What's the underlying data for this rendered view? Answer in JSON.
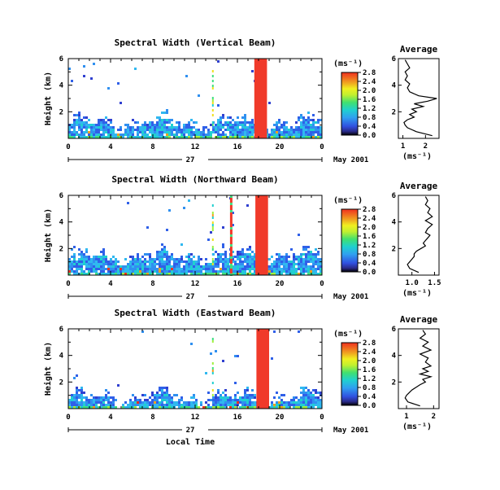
{
  "chart_data": [
    {
      "type": "heatmap",
      "title": "Spectral Width (Vertical Beam)",
      "ylabel": "Height (km)",
      "xlabel": "",
      "xticks": [
        "0",
        "4",
        "8",
        "12",
        "16",
        "20",
        "0"
      ],
      "yticks": [
        "2",
        "4",
        "6"
      ],
      "xlim": [
        0,
        24
      ],
      "ylim": [
        0,
        6
      ],
      "day_label": "27",
      "date_label": "May 2001",
      "colorbar": {
        "unit": "(ms⁻¹)",
        "ticks": [
          "0.0",
          "0.4",
          "0.8",
          "1.2",
          "1.6",
          "2.0",
          "2.4",
          "2.8"
        ],
        "range": [
          0.0,
          2.8
        ]
      },
      "profile": {
        "title": "Average",
        "unit": "(ms⁻¹)",
        "xticks": [
          "1",
          "2"
        ],
        "xlim": [
          0.8,
          2.6
        ],
        "yticks": [
          "2",
          "4",
          "6"
        ],
        "heights": [
          0.2,
          0.5,
          0.8,
          1.0,
          1.2,
          1.4,
          1.6,
          1.8,
          2.0,
          2.2,
          2.4,
          2.6,
          2.8,
          3.0,
          3.2,
          3.5,
          3.8,
          4.1,
          4.4,
          4.7,
          5.0,
          5.3,
          5.6,
          5.9
        ],
        "values": [
          2.3,
          1.6,
          1.2,
          1.1,
          1.05,
          1.2,
          1.5,
          1.3,
          1.6,
          1.4,
          1.9,
          1.5,
          2.1,
          2.5,
          1.7,
          1.3,
          1.2,
          1.3,
          1.1,
          1.2,
          1.1,
          1.3,
          1.2,
          1.1
        ]
      },
      "red_band": {
        "start_hour": 17.6,
        "end_hour": 18.8
      }
    },
    {
      "type": "heatmap",
      "title": "Spectral Width (Northward Beam)",
      "ylabel": "Height (km)",
      "xlabel": "",
      "xticks": [
        "0",
        "4",
        "8",
        "12",
        "16",
        "20",
        "0"
      ],
      "yticks": [
        "2",
        "4",
        "6"
      ],
      "xlim": [
        0,
        24
      ],
      "ylim": [
        0,
        6
      ],
      "day_label": "27",
      "date_label": "May 2001",
      "colorbar": {
        "unit": "(ms⁻¹)",
        "ticks": [
          "0.0",
          "0.4",
          "0.8",
          "1.2",
          "1.6",
          "2.0",
          "2.4",
          "2.8"
        ],
        "range": [
          0.0,
          2.8
        ]
      },
      "profile": {
        "title": "Average",
        "unit": "(ms⁻¹)",
        "xticks": [
          "1.0",
          "1.5"
        ],
        "xlim": [
          0.7,
          1.6
        ],
        "yticks": [
          "2",
          "4",
          "6"
        ],
        "heights": [
          0.2,
          0.5,
          0.8,
          1.0,
          1.2,
          1.4,
          1.6,
          1.8,
          2.0,
          2.2,
          2.4,
          2.6,
          2.8,
          3.0,
          3.2,
          3.5,
          3.8,
          4.1,
          4.4,
          4.7,
          5.0,
          5.3,
          5.6,
          5.9
        ],
        "values": [
          1.15,
          0.95,
          0.9,
          0.95,
          1.0,
          1.05,
          1.05,
          1.1,
          1.2,
          1.3,
          1.25,
          1.3,
          1.35,
          1.4,
          1.3,
          1.35,
          1.45,
          1.3,
          1.45,
          1.35,
          1.4,
          1.3,
          1.35,
          1.3
        ]
      },
      "red_band": {
        "start_hour": 17.7,
        "end_hour": 18.9
      }
    },
    {
      "type": "heatmap",
      "title": "Spectral Width (Eastward Beam)",
      "ylabel": "Height (km)",
      "xlabel": "Local Time",
      "xticks": [
        "0",
        "4",
        "8",
        "12",
        "16",
        "20",
        "0"
      ],
      "yticks": [
        "2",
        "4",
        "6"
      ],
      "xlim": [
        0,
        24
      ],
      "ylim": [
        0,
        6
      ],
      "day_label": "27",
      "date_label": "May 2001",
      "colorbar": {
        "unit": "(ms⁻¹)",
        "ticks": [
          "0.0",
          "0.4",
          "0.8",
          "1.2",
          "1.6",
          "2.0",
          "2.4",
          "2.8"
        ],
        "range": [
          0.0,
          2.8
        ]
      },
      "profile": {
        "title": "Average",
        "unit": "(ms⁻¹)",
        "xticks": [
          "1",
          "2"
        ],
        "xlim": [
          0.7,
          2.2
        ],
        "yticks": [
          "2",
          "4",
          "6"
        ],
        "heights": [
          0.2,
          0.5,
          0.8,
          1.0,
          1.2,
          1.4,
          1.6,
          1.8,
          2.0,
          2.2,
          2.4,
          2.6,
          2.8,
          3.0,
          3.2,
          3.5,
          3.8,
          4.1,
          4.4,
          4.7,
          5.0,
          5.3,
          5.6,
          5.9
        ],
        "values": [
          1.5,
          1.05,
          0.95,
          1.0,
          1.1,
          1.2,
          1.35,
          1.5,
          1.7,
          1.6,
          1.9,
          1.5,
          1.8,
          1.6,
          1.9,
          1.7,
          1.8,
          1.5,
          1.9,
          1.6,
          1.8,
          1.5,
          1.7,
          1.6
        ]
      },
      "red_band": {
        "start_hour": 17.8,
        "end_hour": 19.0
      }
    }
  ]
}
